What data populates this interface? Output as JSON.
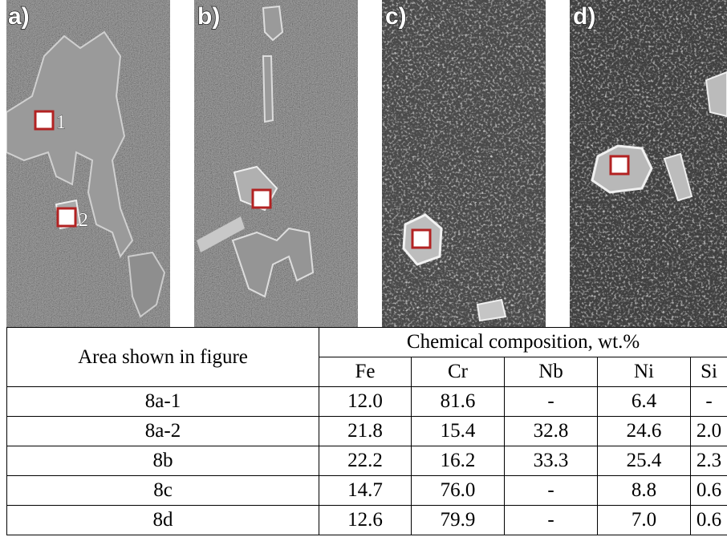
{
  "panels": [
    {
      "label": "a)",
      "markers": [
        "1",
        "2"
      ]
    },
    {
      "label": "b)"
    },
    {
      "label": "c)"
    },
    {
      "label": "d)"
    }
  ],
  "table": {
    "header": {
      "area": "Area shown in figure",
      "group": "Chemical composition, wt.%",
      "columns": [
        "Fe",
        "Cr",
        "Nb",
        "Ni",
        "Si"
      ]
    },
    "rows": [
      [
        "8a-1",
        "12.0",
        "81.6",
        "-",
        "6.4",
        "-"
      ],
      [
        "8a-2",
        "21.8",
        "15.4",
        "32.8",
        "24.6",
        "2.0"
      ],
      [
        "8b",
        "22.2",
        "16.2",
        "33.3",
        "25.4",
        "2.3"
      ],
      [
        "8c",
        "14.7",
        "76.0",
        "-",
        "8.8",
        "0.6"
      ],
      [
        "8d",
        "12.6",
        "79.9",
        "-",
        "7.0",
        "0.6"
      ]
    ]
  }
}
